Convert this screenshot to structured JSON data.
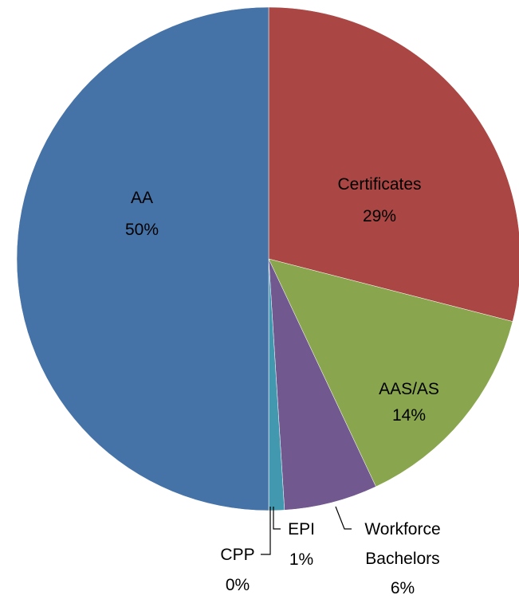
{
  "chart_data": {
    "type": "pie",
    "categories": [
      "Certificates",
      "AAS/AS",
      "Workforce Bachelors",
      "EPI",
      "CPP",
      "AA"
    ],
    "values": [
      29,
      14,
      6,
      1,
      0,
      50
    ],
    "value_labels": [
      "29%",
      "14%",
      "6%",
      "1%",
      "0%",
      "50%"
    ],
    "colors": [
      "#aa4643",
      "#89a54e",
      "#71588f",
      "#4198af",
      "#db843d",
      "#4572a7"
    ]
  }
}
